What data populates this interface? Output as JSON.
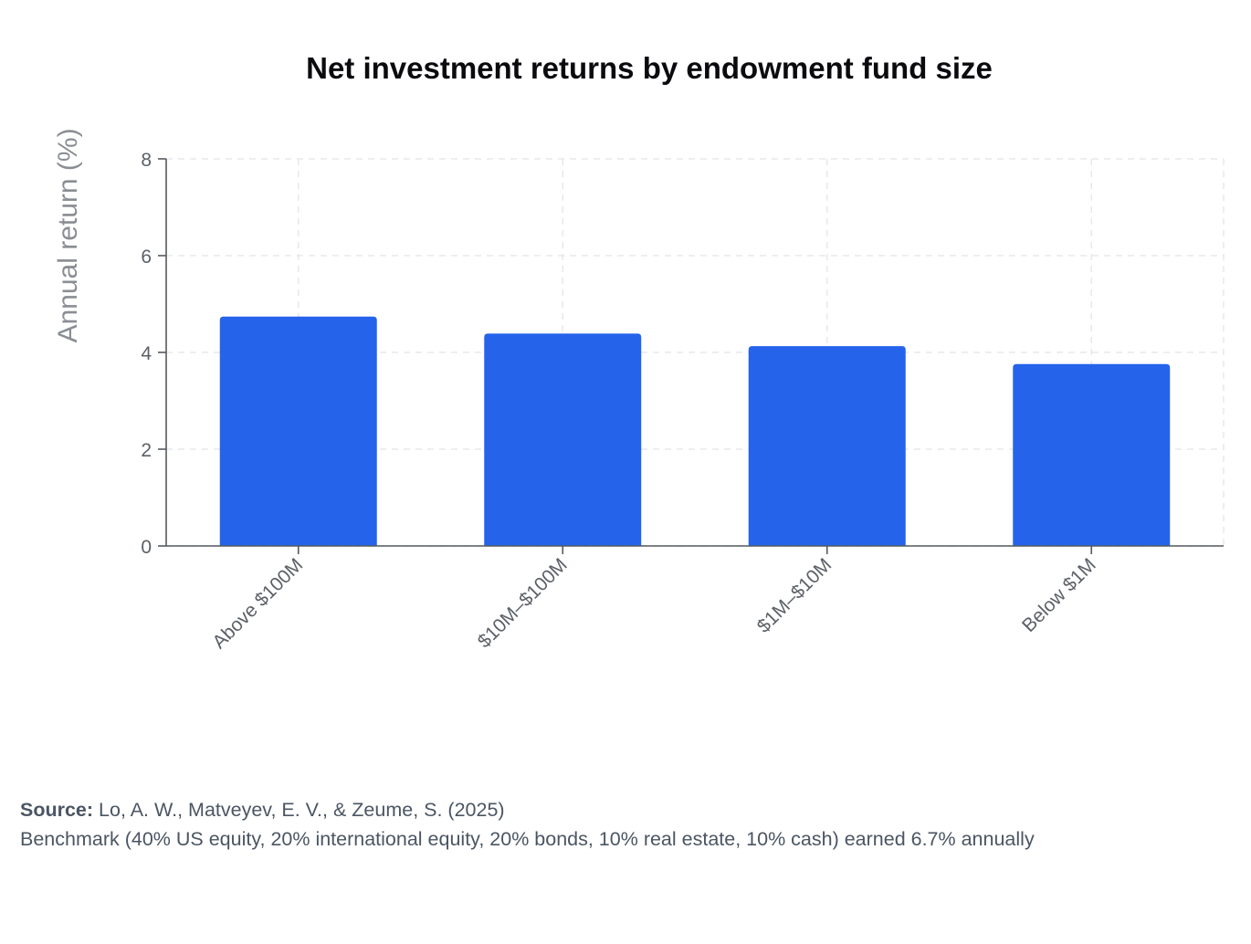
{
  "chart_data": {
    "type": "bar",
    "title": "Net investment returns by endowment fund size",
    "xlabel": "",
    "ylabel": "Annual return (%)",
    "categories": [
      "Above $100M",
      "$10M–$100M",
      "$1M–$10M",
      "Below $1M"
    ],
    "values": [
      4.74,
      4.39,
      4.13,
      3.76
    ],
    "ylim": [
      0,
      8
    ],
    "yticks": [
      0,
      2,
      4,
      6,
      8
    ],
    "grid": true,
    "bar_color": "#2563eb"
  },
  "footer": {
    "source_label": "Source:",
    "source_text": "Lo, A. W., Matveyev, E. V., & Zeume, S. (2025)",
    "note": "Benchmark (40% US equity, 20% international equity, 20% bonds, 10% real estate, 10% cash) earned 6.7% annually"
  }
}
